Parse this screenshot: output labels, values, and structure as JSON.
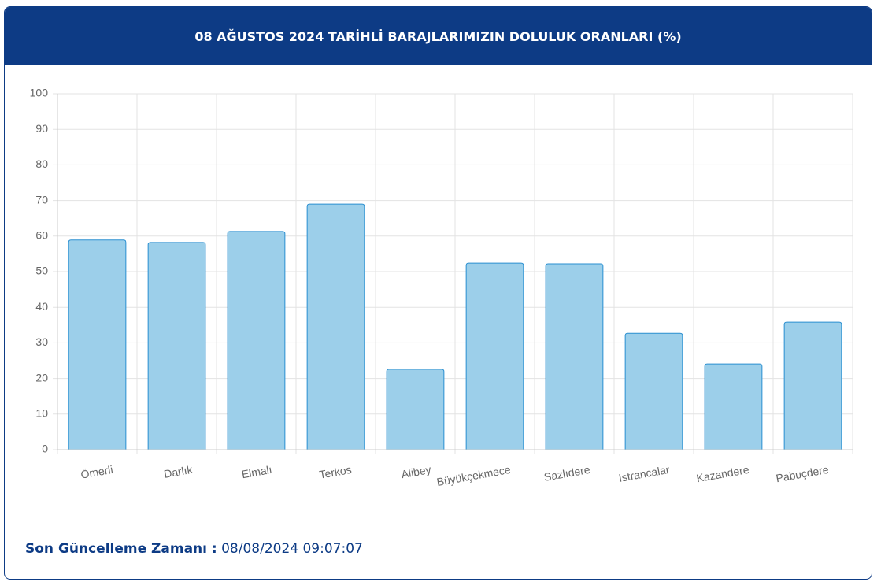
{
  "chart_data": {
    "type": "bar",
    "title": "08 AĞUSTOS 2024 TARİHLİ BARAJLARIMIZIN DOLULUK ORANLARI (%)",
    "categories": [
      "Ömerli",
      "Darlık",
      "Elmalı",
      "Terkos",
      "Alibey",
      "Büyükçekmece",
      "Sazlıdere",
      "Istrancalar",
      "Kazandere",
      "Pabuçdere"
    ],
    "values": [
      58.9,
      58.2,
      61.3,
      69.0,
      22.6,
      52.4,
      52.2,
      32.7,
      24.1,
      35.8
    ],
    "color": "#9ccfea",
    "border_color": "#2a8fd0",
    "ylim": [
      0,
      100
    ],
    "yticks": [
      0,
      10,
      20,
      30,
      40,
      50,
      60,
      70,
      80,
      90,
      100
    ],
    "grid": true
  },
  "footer": {
    "label": "Son Güncelleme Zamanı :",
    "value": "08/08/2024 09:07:07"
  }
}
